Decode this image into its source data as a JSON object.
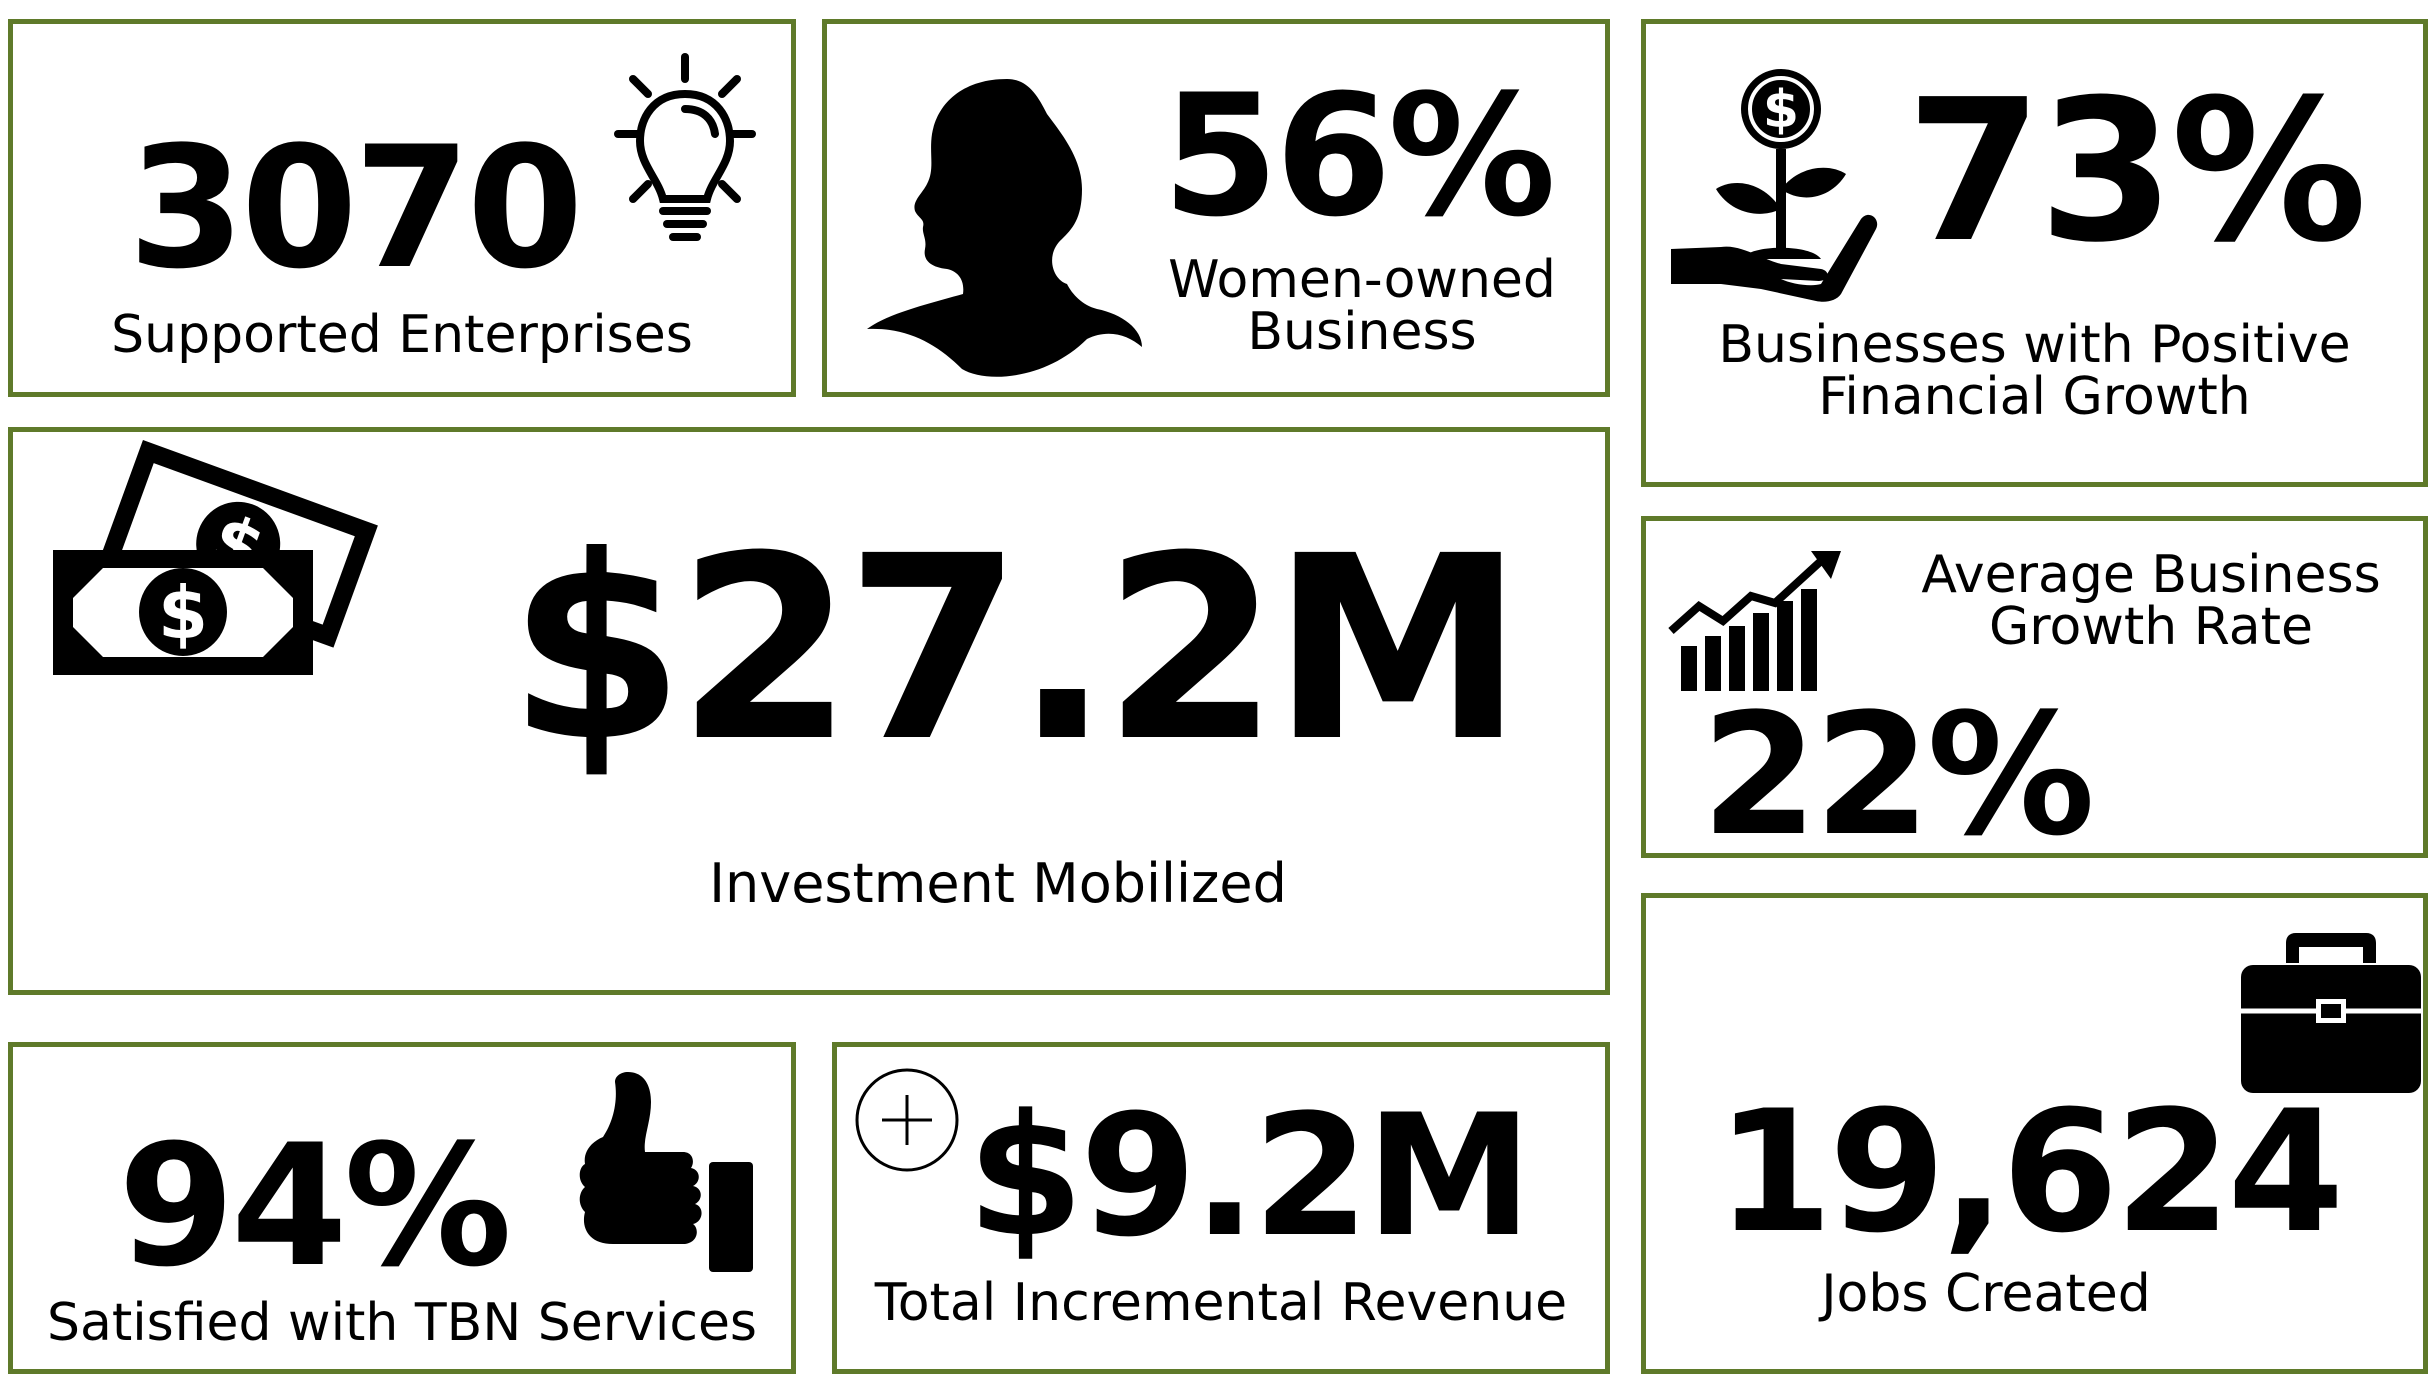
{
  "colors": {
    "border": "#5f7a2a",
    "text": "#000000",
    "background": "#ffffff"
  },
  "stats": {
    "enterprises": {
      "value": "3070",
      "label": "Supported Enterprises",
      "icon": "lightbulb-icon"
    },
    "women": {
      "value": "56%",
      "label_line1": "Women-owned",
      "label_line2": "Business",
      "icon": "woman-profile-icon"
    },
    "growth": {
      "value": "73%",
      "label_line1": "Businesses with Positive",
      "label_line2": "Financial Growth",
      "icon": "money-plant-hand-icon"
    },
    "investment": {
      "value": "$27.2M",
      "label": "Investment Mobilized",
      "icon": "banknotes-icon"
    },
    "avg_growth": {
      "value": "22%",
      "label_line1": "Average Business",
      "label_line2": "Growth Rate",
      "icon": "growth-chart-icon"
    },
    "satisfied": {
      "value": "94%",
      "label": "Satisfied with TBN Services",
      "icon": "thumbs-up-icon"
    },
    "revenue": {
      "value": "$9.2M",
      "label": "Total Incremental Revenue",
      "icon": "plus-circle-icon"
    },
    "jobs": {
      "value": "19,624",
      "label": "Jobs Created",
      "icon": "briefcase-icon"
    }
  }
}
